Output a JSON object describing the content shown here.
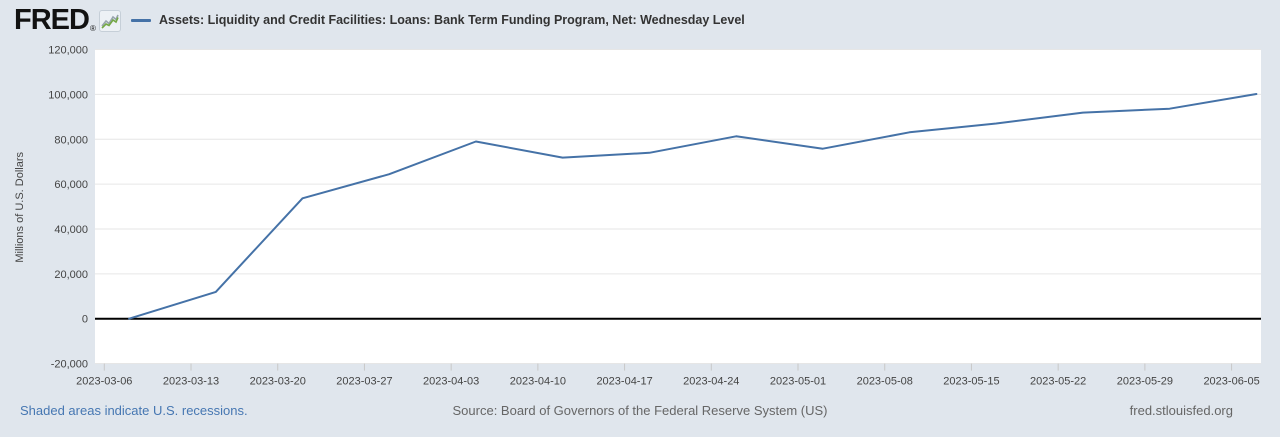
{
  "header": {
    "logo_text": "FRED",
    "logo_reg": "®"
  },
  "icons": {
    "fred_logo_graph_icon": "zigzag-sparkline",
    "legend_line_icon": "—"
  },
  "chart_data": {
    "type": "line",
    "title": "Assets: Liquidity and Credit Facilities: Loans: Bank Term Funding Program, Net: Wednesday Level",
    "ylabel": "Millions of U.S. Dollars",
    "x": [
      "2023-03-08",
      "2023-03-15",
      "2023-03-22",
      "2023-03-29",
      "2023-04-05",
      "2023-04-12",
      "2023-04-19",
      "2023-04-26",
      "2023-05-03",
      "2023-05-10",
      "2023-05-17",
      "2023-05-24",
      "2023-05-31",
      "2023-06-07"
    ],
    "values": [
      0,
      11943,
      53669,
      64403,
      79021,
      71837,
      73982,
      81327,
      75778,
      83101,
      87006,
      91907,
      93615,
      100161
    ],
    "x_tick_labels": [
      "2023-03-06",
      "2023-03-13",
      "2023-03-20",
      "2023-03-27",
      "2023-04-03",
      "2023-04-10",
      "2023-04-17",
      "2023-04-24",
      "2023-05-01",
      "2023-05-08",
      "2023-05-15",
      "2023-05-22",
      "2023-05-29",
      "2023-06-05"
    ],
    "y_tick_values": [
      120000,
      100000,
      80000,
      60000,
      40000,
      20000,
      0,
      -20000
    ],
    "y_tick_labels": [
      "120,000",
      "100,000",
      "80,000",
      "60,000",
      "40,000",
      "20,000",
      "0",
      "-20,000"
    ],
    "ylim": [
      -20000,
      120000
    ],
    "grid": "horizontal-only",
    "legend_position": "top-left",
    "line_color": "#4572a7",
    "zero_line_color": "#000000"
  },
  "footer": {
    "recession_note": "Shaded areas indicate U.S. recessions.",
    "source": "Source: Board of Governors of the Federal Reserve System (US)",
    "site": "fred.stlouisfed.org"
  },
  "colors": {
    "background": "#e0e6ed",
    "plot_background": "#ffffff",
    "grid": "#e6e6e6",
    "tick": "#c8c8c8",
    "axis_text": "#444444",
    "title_text": "#333333",
    "link": "#4677b2",
    "muted_text": "#666666"
  }
}
